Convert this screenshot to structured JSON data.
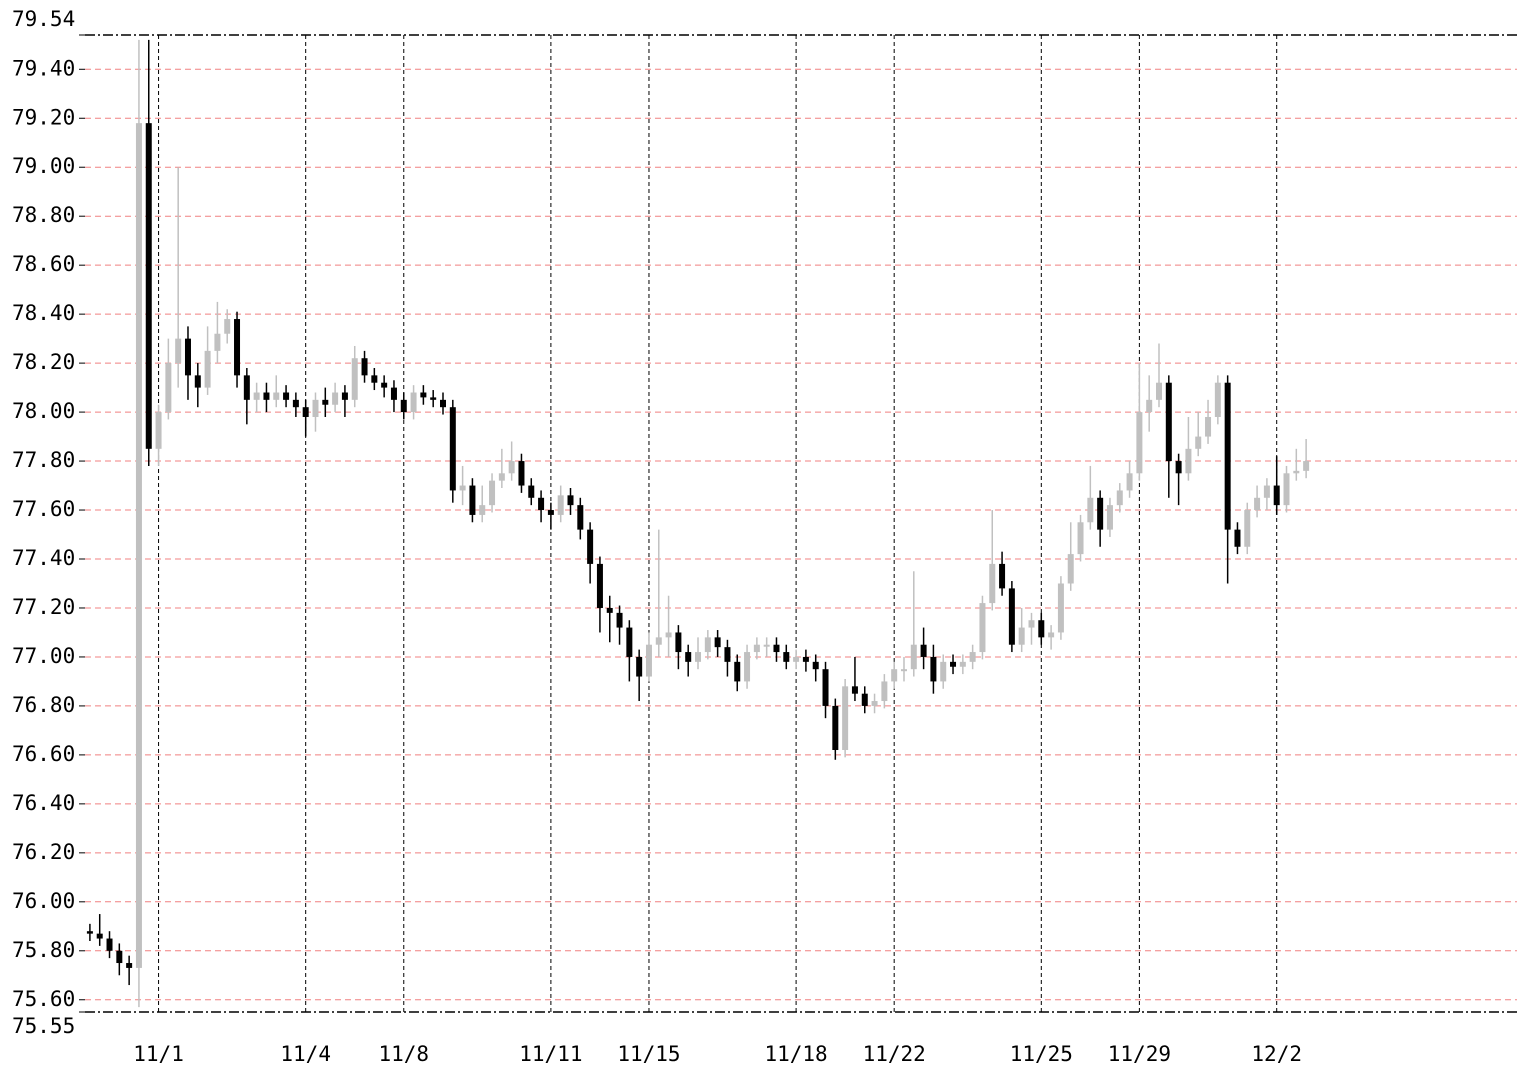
{
  "chart_data": {
    "type": "candlestick",
    "up_color": "#c0c0c0",
    "down_color": "#000000",
    "grid": true,
    "ylim": [
      75.55,
      79.54
    ],
    "yticks": [
      75.55,
      {
        "value": 75.6,
        "label": "75.60"
      },
      {
        "value": 75.8,
        "label": "75.80"
      },
      {
        "value": 76.0,
        "label": "76.00"
      },
      {
        "value": 76.2,
        "label": "76.20"
      },
      {
        "value": 76.4,
        "label": "76.40"
      },
      {
        "value": 76.6,
        "label": "76.60"
      },
      {
        "value": 76.8,
        "label": "76.80"
      },
      {
        "value": 77.0,
        "label": "77.00"
      },
      {
        "value": 77.2,
        "label": "77.20"
      },
      {
        "value": 77.4,
        "label": "77.40"
      },
      {
        "value": 77.6,
        "label": "77.60"
      },
      {
        "value": 77.8,
        "label": "77.80"
      },
      {
        "value": 78.0,
        "label": "78.00"
      },
      {
        "value": 78.2,
        "label": "78.20"
      },
      {
        "value": 78.4,
        "label": "78.40"
      },
      {
        "value": 78.6,
        "label": "78.60"
      },
      {
        "value": 78.8,
        "label": "78.80"
      },
      {
        "value": 79.0,
        "label": "79.00"
      },
      {
        "value": 79.2,
        "label": "79.20"
      },
      {
        "value": 79.4,
        "label": "79.40"
      },
      79.54
    ],
    "categories": [
      null,
      null,
      null,
      null,
      null,
      null,
      null,
      "11/1",
      null,
      null,
      null,
      null,
      null,
      null,
      null,
      null,
      null,
      null,
      null,
      null,
      null,
      null,
      "11/4",
      null,
      null,
      null,
      null,
      null,
      null,
      null,
      null,
      null,
      "11/8",
      null,
      null,
      null,
      null,
      null,
      null,
      null,
      null,
      null,
      null,
      null,
      null,
      null,
      null,
      "11/11",
      null,
      null,
      null,
      null,
      null,
      null,
      null,
      null,
      null,
      "11/15",
      null,
      null,
      null,
      null,
      null,
      null,
      null,
      null,
      null,
      null,
      null,
      null,
      null,
      null,
      "11/18",
      null,
      null,
      null,
      null,
      null,
      null,
      null,
      null,
      null,
      "11/22",
      null,
      null,
      null,
      null,
      null,
      null,
      null,
      null,
      null,
      null,
      null,
      null,
      null,
      null,
      "11/25",
      null,
      null,
      null,
      null,
      null,
      null,
      null,
      null,
      null,
      "11/29",
      null,
      null,
      null,
      null,
      null,
      null,
      null,
      null,
      null,
      null,
      null,
      null,
      null,
      "12/2",
      null,
      null,
      null,
      null,
      null,
      null,
      null,
      null,
      null,
      null,
      null,
      null,
      null,
      null,
      null,
      null,
      null,
      null,
      null,
      null,
      null,
      null,
      null,
      null
    ],
    "open": [
      75.88,
      75.87,
      75.85,
      75.8,
      75.75,
      75.73,
      79.18,
      77.85,
      78.0,
      78.2,
      78.3,
      78.15,
      78.1,
      78.25,
      78.32,
      78.38,
      78.15,
      78.05,
      78.08,
      78.05,
      78.08,
      78.05,
      78.02,
      77.98,
      78.05,
      78.03,
      78.08,
      78.05,
      78.22,
      78.15,
      78.12,
      78.1,
      78.05,
      78.0,
      78.08,
      78.06,
      78.05,
      78.02,
      77.68,
      77.7,
      77.58,
      77.62,
      77.72,
      77.75,
      77.8,
      77.7,
      77.65,
      77.6,
      77.58,
      77.66,
      77.62,
      77.52,
      77.38,
      77.2,
      77.18,
      77.12,
      77.0,
      76.92,
      77.05,
      77.08,
      77.1,
      77.02,
      76.98,
      77.02,
      77.08,
      77.04,
      76.98,
      76.9,
      77.02,
      77.05,
      77.05,
      77.02,
      76.98,
      77.0,
      76.98,
      76.95,
      76.8,
      76.62,
      76.88,
      76.85,
      76.8,
      76.82,
      76.9,
      76.95,
      76.95,
      77.05,
      77.0,
      76.9,
      76.98,
      76.96,
      76.98,
      77.02,
      77.22,
      77.38,
      77.28,
      77.05,
      77.12,
      77.15,
      77.08,
      77.1,
      77.3,
      77.42,
      77.55,
      77.65,
      77.52,
      77.62,
      77.68,
      77.75,
      78.0,
      78.05,
      78.12,
      77.8,
      77.75,
      77.85,
      77.9,
      77.98,
      78.12,
      77.52,
      77.45,
      77.6,
      77.65,
      77.7,
      77.62,
      77.75,
      77.76,
      null,
      null,
      null,
      null,
      null,
      null,
      null,
      null,
      null,
      null,
      null,
      null,
      null,
      null,
      null,
      null,
      null,
      null,
      null,
      null,
      null
    ],
    "high": [
      75.91,
      75.95,
      75.88,
      75.83,
      75.78,
      79.52,
      79.52,
      78.03,
      78.3,
      79.0,
      78.35,
      78.2,
      78.35,
      78.45,
      78.42,
      78.41,
      78.18,
      78.12,
      78.12,
      78.15,
      78.11,
      78.08,
      78.05,
      78.08,
      78.1,
      78.12,
      78.11,
      78.27,
      78.25,
      78.18,
      78.15,
      78.13,
      78.08,
      78.11,
      78.11,
      78.09,
      78.08,
      78.05,
      77.78,
      77.73,
      77.7,
      77.75,
      77.85,
      77.88,
      77.83,
      77.73,
      77.68,
      77.63,
      77.7,
      77.69,
      77.65,
      77.55,
      77.41,
      77.25,
      77.21,
      77.15,
      77.03,
      77.1,
      77.52,
      77.25,
      77.13,
      77.05,
      77.08,
      77.11,
      77.11,
      77.07,
      77.01,
      77.05,
      77.08,
      77.08,
      77.08,
      77.05,
      77.03,
      77.03,
      77.01,
      76.98,
      76.83,
      76.91,
      77.0,
      76.88,
      76.85,
      76.93,
      76.98,
      77.0,
      77.35,
      77.12,
      77.05,
      77.01,
      77.01,
      77.01,
      77.05,
      77.25,
      77.6,
      77.43,
      77.31,
      77.2,
      77.18,
      77.18,
      77.13,
      77.33,
      77.55,
      77.58,
      77.78,
      77.68,
      77.65,
      77.71,
      77.8,
      78.2,
      78.15,
      78.28,
      78.15,
      77.83,
      77.98,
      78.0,
      78.05,
      78.15,
      78.15,
      77.55,
      77.63,
      77.7,
      77.73,
      77.82,
      77.78,
      77.85,
      77.89,
      null,
      null,
      null,
      null,
      null,
      null,
      null,
      null,
      null,
      null,
      null,
      null,
      null,
      null,
      null,
      null,
      null,
      null,
      null,
      null,
      null
    ],
    "low": [
      75.84,
      75.82,
      75.77,
      75.7,
      75.66,
      75.57,
      77.78,
      77.78,
      77.97,
      78.1,
      78.05,
      78.02,
      78.07,
      78.2,
      78.28,
      78.1,
      77.95,
      78.0,
      78.0,
      78.02,
      78.02,
      77.98,
      77.9,
      77.92,
      77.98,
      78.0,
      77.98,
      78.02,
      78.12,
      78.09,
      78.06,
      78.0,
      77.97,
      77.97,
      78.03,
      78.02,
      77.99,
      77.63,
      77.62,
      77.55,
      77.55,
      77.59,
      77.69,
      77.72,
      77.67,
      77.62,
      77.55,
      77.52,
      77.55,
      77.58,
      77.48,
      77.3,
      77.1,
      77.06,
      77.05,
      76.9,
      76.82,
      76.9,
      77.0,
      77.0,
      76.95,
      76.92,
      76.95,
      76.99,
      77.0,
      76.92,
      76.86,
      76.87,
      76.99,
      77.0,
      76.98,
      76.95,
      76.95,
      76.94,
      76.9,
      76.75,
      76.58,
      76.59,
      76.82,
      76.77,
      76.77,
      76.79,
      76.87,
      76.9,
      76.92,
      76.95,
      76.85,
      76.87,
      76.93,
      76.93,
      76.95,
      76.99,
      77.19,
      77.25,
      77.02,
      77.02,
      77.05,
      77.05,
      77.03,
      77.07,
      77.27,
      77.39,
      77.52,
      77.45,
      77.49,
      77.59,
      77.65,
      77.72,
      77.92,
      78.02,
      77.65,
      77.62,
      77.72,
      77.82,
      77.87,
      77.95,
      77.3,
      77.42,
      77.42,
      77.57,
      77.6,
      77.58,
      77.59,
      77.72,
      77.73,
      null,
      null,
      null,
      null,
      null,
      null,
      null,
      null,
      null,
      null,
      null,
      null,
      null,
      null,
      null,
      null,
      null,
      null,
      null,
      null,
      null
    ],
    "close": [
      75.87,
      75.85,
      75.8,
      75.75,
      75.73,
      79.18,
      77.85,
      78.0,
      78.2,
      78.3,
      78.15,
      78.1,
      78.25,
      78.32,
      78.38,
      78.15,
      78.05,
      78.08,
      78.05,
      78.08,
      78.05,
      78.02,
      77.98,
      78.05,
      78.03,
      78.08,
      78.05,
      78.22,
      78.15,
      78.12,
      78.1,
      78.05,
      78.0,
      78.08,
      78.06,
      78.05,
      78.02,
      77.68,
      77.7,
      77.58,
      77.62,
      77.72,
      77.75,
      77.8,
      77.7,
      77.65,
      77.6,
      77.58,
      77.66,
      77.62,
      77.52,
      77.38,
      77.2,
      77.18,
      77.12,
      77.0,
      76.92,
      77.05,
      77.08,
      77.1,
      77.02,
      76.98,
      77.02,
      77.08,
      77.04,
      76.98,
      76.9,
      77.02,
      77.05,
      77.05,
      77.02,
      76.98,
      77.0,
      76.98,
      76.95,
      76.8,
      76.62,
      76.88,
      76.85,
      76.8,
      76.82,
      76.9,
      76.95,
      76.95,
      77.05,
      77.0,
      76.9,
      76.98,
      76.96,
      76.98,
      77.02,
      77.22,
      77.38,
      77.28,
      77.05,
      77.12,
      77.15,
      77.08,
      77.1,
      77.3,
      77.42,
      77.55,
      77.65,
      77.52,
      77.62,
      77.68,
      77.75,
      78.0,
      78.05,
      78.12,
      77.8,
      77.75,
      77.85,
      77.9,
      77.98,
      78.12,
      77.52,
      77.45,
      77.6,
      77.65,
      77.7,
      77.62,
      77.75,
      77.76,
      77.8,
      null,
      null,
      null,
      null,
      null,
      null,
      null,
      null,
      null,
      null,
      null,
      null,
      null,
      null,
      null,
      null,
      null,
      null,
      null,
      null,
      null
    ]
  }
}
